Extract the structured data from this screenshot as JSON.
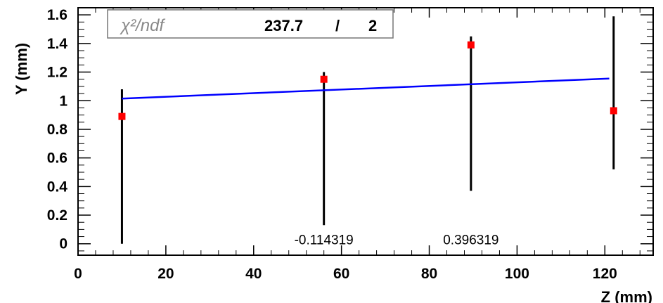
{
  "chart_data": {
    "type": "scatter",
    "xlabel": "Z (mm)",
    "ylabel": "Y (mm)",
    "xlim": [
      0,
      131
    ],
    "ylim": [
      -0.08,
      1.65
    ],
    "x_ticks": [
      "0",
      "20",
      "40",
      "60",
      "80",
      "100",
      "120"
    ],
    "x_tick_values": [
      0,
      20,
      40,
      60,
      80,
      100,
      120
    ],
    "y_ticks": [
      "0",
      "0.2",
      "0.4",
      "0.6",
      "0.8",
      "1",
      "1.2",
      "1.4",
      "1.6"
    ],
    "y_tick_values": [
      0,
      0.2,
      0.4,
      0.6,
      0.8,
      1.0,
      1.2,
      1.4,
      1.6
    ],
    "points": [
      {
        "x": 10,
        "y": 0.89,
        "y_low": 0.0,
        "y_high": 1.08
      },
      {
        "x": 56,
        "y": 1.15,
        "y_low": 0.13,
        "y_high": 1.2
      },
      {
        "x": 89.5,
        "y": 1.39,
        "y_low": 0.37,
        "y_high": 1.45
      },
      {
        "x": 122,
        "y": 0.93,
        "y_low": 0.52,
        "y_high": 1.59
      }
    ],
    "fit_line": {
      "x": [
        10,
        121
      ],
      "y": [
        1.015,
        1.155
      ]
    },
    "annotations": [
      {
        "text": "-0.114319",
        "x": 56,
        "y": 0.03
      },
      {
        "text": "0.396319",
        "x": 89.5,
        "y": 0.03
      }
    ],
    "stats_box": {
      "label": "χ²/ndf",
      "value": "237.7",
      "separator": "/",
      "ndf": "2"
    },
    "colors": {
      "points": "#ff0000",
      "fit": "#0000ff",
      "error_bars": "#000000"
    }
  }
}
